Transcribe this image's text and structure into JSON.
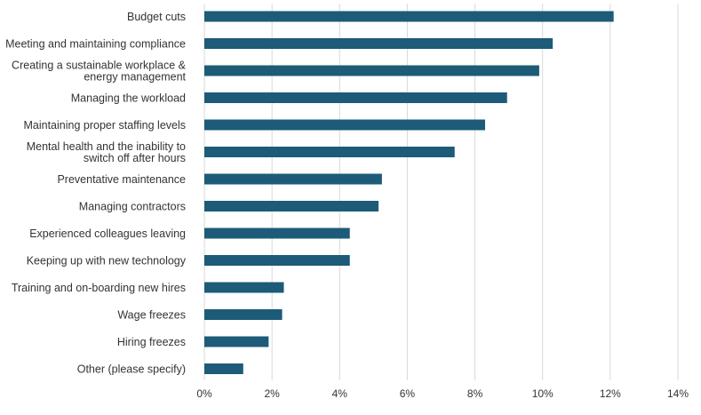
{
  "chart_data": {
    "type": "bar",
    "orientation": "horizontal",
    "title": "",
    "xlabel": "",
    "ylabel": "",
    "categories": [
      [
        "Budget cuts"
      ],
      [
        "Meeting and maintaining compliance"
      ],
      [
        "Creating a sustainable workplace &",
        "energy management"
      ],
      [
        "Managing the workload"
      ],
      [
        "Maintaining proper staffing levels"
      ],
      [
        "Mental health and the inability to",
        "switch off after hours"
      ],
      [
        "Preventative maintenance"
      ],
      [
        "Managing contractors"
      ],
      [
        "Experienced colleagues leaving"
      ],
      [
        "Keeping up with new technology"
      ],
      [
        "Training and on-boarding new hires"
      ],
      [
        "Wage freezes"
      ],
      [
        "Hiring freezes"
      ],
      [
        "Other (please specify)"
      ]
    ],
    "values": [
      12.1,
      10.3,
      9.9,
      8.95,
      8.3,
      7.4,
      5.25,
      5.15,
      4.3,
      4.3,
      2.35,
      2.3,
      1.9,
      1.15
    ],
    "xlim": [
      0,
      14
    ],
    "xticks": [
      0,
      2,
      4,
      6,
      8,
      10,
      12,
      14
    ],
    "tick_suffix": "%",
    "grid": true,
    "bar_color": "#1d5b78",
    "grid_color": "#d9d9d9"
  }
}
